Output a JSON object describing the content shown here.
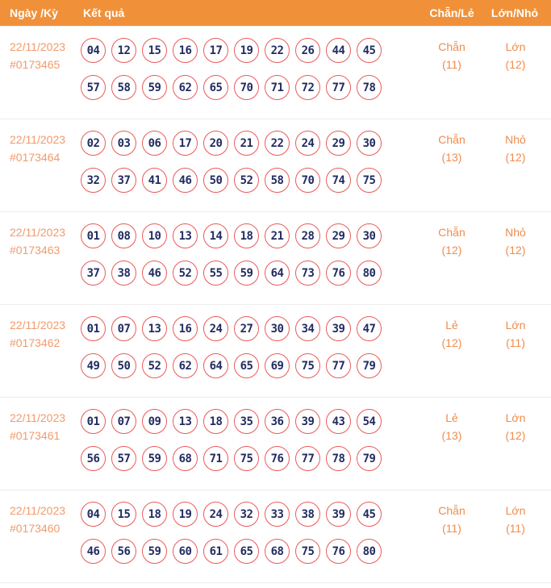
{
  "header": {
    "date_col": "Ngày /Kỳ",
    "result_col": "Kết quả",
    "even_odd_col": "Chẵn/Lẻ",
    "big_small_col": "Lớn/Nhỏ"
  },
  "colors": {
    "header_bg": "#F0913A",
    "header_text": "#FFFFFF",
    "date_text": "#F19A6C",
    "stat_text": "#EF8C4D",
    "ball_border": "#EA5A5A",
    "ball_number": "#232C61",
    "row_divider": "#ECECEC"
  },
  "rows": [
    {
      "date": "22/11/2023",
      "draw_id": "#0173465",
      "numbers_line1": [
        "04",
        "12",
        "15",
        "16",
        "17",
        "19",
        "22",
        "26",
        "44",
        "45"
      ],
      "numbers_line2": [
        "57",
        "58",
        "59",
        "62",
        "65",
        "70",
        "71",
        "72",
        "77",
        "78"
      ],
      "even_odd": {
        "label": "Chẵn",
        "count": "(11)"
      },
      "big_small": {
        "label": "Lớn",
        "count": "(12)"
      }
    },
    {
      "date": "22/11/2023",
      "draw_id": "#0173464",
      "numbers_line1": [
        "02",
        "03",
        "06",
        "17",
        "20",
        "21",
        "22",
        "24",
        "29",
        "30"
      ],
      "numbers_line2": [
        "32",
        "37",
        "41",
        "46",
        "50",
        "52",
        "58",
        "70",
        "74",
        "75"
      ],
      "even_odd": {
        "label": "Chẵn",
        "count": "(13)"
      },
      "big_small": {
        "label": "Nhỏ",
        "count": "(12)"
      }
    },
    {
      "date": "22/11/2023",
      "draw_id": "#0173463",
      "numbers_line1": [
        "01",
        "08",
        "10",
        "13",
        "14",
        "18",
        "21",
        "28",
        "29",
        "30"
      ],
      "numbers_line2": [
        "37",
        "38",
        "46",
        "52",
        "55",
        "59",
        "64",
        "73",
        "76",
        "80"
      ],
      "even_odd": {
        "label": "Chẵn",
        "count": "(12)"
      },
      "big_small": {
        "label": "Nhỏ",
        "count": "(12)"
      }
    },
    {
      "date": "22/11/2023",
      "draw_id": "#0173462",
      "numbers_line1": [
        "01",
        "07",
        "13",
        "16",
        "24",
        "27",
        "30",
        "34",
        "39",
        "47"
      ],
      "numbers_line2": [
        "49",
        "50",
        "52",
        "62",
        "64",
        "65",
        "69",
        "75",
        "77",
        "79"
      ],
      "even_odd": {
        "label": "Lẻ",
        "count": "(12)"
      },
      "big_small": {
        "label": "Lớn",
        "count": "(11)"
      }
    },
    {
      "date": "22/11/2023",
      "draw_id": "#0173461",
      "numbers_line1": [
        "01",
        "07",
        "09",
        "13",
        "18",
        "35",
        "36",
        "39",
        "43",
        "54"
      ],
      "numbers_line2": [
        "56",
        "57",
        "59",
        "68",
        "71",
        "75",
        "76",
        "77",
        "78",
        "79"
      ],
      "even_odd": {
        "label": "Lẻ",
        "count": "(13)"
      },
      "big_small": {
        "label": "Lớn",
        "count": "(12)"
      }
    },
    {
      "date": "22/11/2023",
      "draw_id": "#0173460",
      "numbers_line1": [
        "04",
        "15",
        "18",
        "19",
        "24",
        "32",
        "33",
        "38",
        "39",
        "45"
      ],
      "numbers_line2": [
        "46",
        "56",
        "59",
        "60",
        "61",
        "65",
        "68",
        "75",
        "76",
        "80"
      ],
      "even_odd": {
        "label": "Chẵn",
        "count": "(11)"
      },
      "big_small": {
        "label": "Lớn",
        "count": "(11)"
      }
    }
  ]
}
